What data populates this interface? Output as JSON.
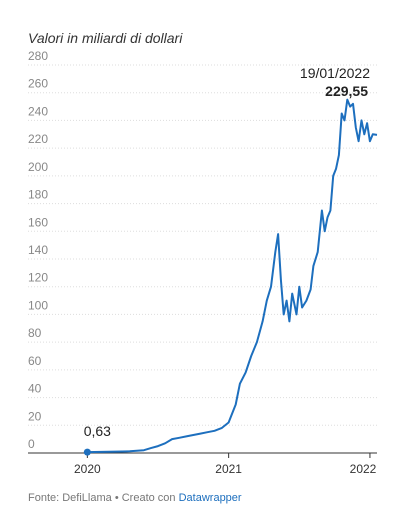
{
  "subtitle": "Valori in miliardi di dollari",
  "footer": {
    "source": "Fonte: DefiLlama",
    "sep": " • ",
    "created": "Creato con ",
    "tool": "Datawrapper"
  },
  "colors": {
    "line": "#1d6fbe",
    "grid": "#dddddd"
  },
  "chart_data": {
    "type": "line",
    "title": "",
    "xlabel": "",
    "ylabel": "",
    "ylim": [
      0,
      280
    ],
    "yticks": [
      0,
      20,
      40,
      60,
      80,
      100,
      120,
      140,
      160,
      180,
      200,
      220,
      240,
      260,
      280
    ],
    "xticks": [
      {
        "label": "2020",
        "x": 2020.0
      },
      {
        "label": "2021",
        "x": 2021.0
      },
      {
        "label": "2022",
        "x": 2022.0
      }
    ],
    "xlim": [
      2019.58,
      2022.05
    ],
    "grid": true,
    "series": [
      {
        "x": [
          2020.0,
          2020.1,
          2020.2,
          2020.3,
          2020.4,
          2020.45,
          2020.5,
          2020.55,
          2020.6,
          2020.65,
          2020.7,
          2020.75,
          2020.8,
          2020.85,
          2020.9,
          2020.95,
          2021.0,
          2021.05,
          2021.08,
          2021.12,
          2021.16,
          2021.2,
          2021.24,
          2021.27,
          2021.3,
          2021.33,
          2021.35,
          2021.37,
          2021.39,
          2021.41,
          2021.43,
          2021.45,
          2021.48,
          2021.5,
          2021.52,
          2021.55,
          2021.58,
          2021.6,
          2021.63,
          2021.66,
          2021.68,
          2021.7,
          2021.72,
          2021.74,
          2021.76,
          2021.78,
          2021.8,
          2021.82,
          2021.84,
          2021.86,
          2021.88,
          2021.9,
          2021.92,
          2021.94,
          2021.96,
          2021.98,
          2022.0,
          2022.02,
          2022.05
        ],
        "y": [
          0.63,
          0.8,
          1.0,
          1.2,
          2.0,
          3.5,
          5.0,
          7.0,
          10.0,
          11.0,
          12.0,
          13.0,
          14.0,
          15.0,
          16.0,
          18.0,
          22.0,
          35.0,
          50.0,
          58.0,
          70.0,
          80.0,
          95.0,
          110.0,
          120.0,
          145.0,
          158.0,
          125.0,
          100.0,
          110.0,
          95.0,
          115.0,
          100.0,
          120.0,
          105.0,
          110.0,
          118.0,
          135.0,
          145.0,
          175.0,
          160.0,
          170.0,
          175.0,
          200.0,
          205.0,
          215.0,
          245.0,
          240.0,
          255.0,
          250.0,
          252.0,
          235.0,
          225.0,
          240.0,
          230.0,
          238.0,
          225.0,
          230.0,
          229.55
        ]
      }
    ],
    "annotations": [
      {
        "label": "0,63",
        "x": 2020.0,
        "y": 0.63
      },
      {
        "date": "19/01/2022",
        "value": "229,55",
        "x": 2022.05,
        "y": 229.55
      }
    ]
  }
}
